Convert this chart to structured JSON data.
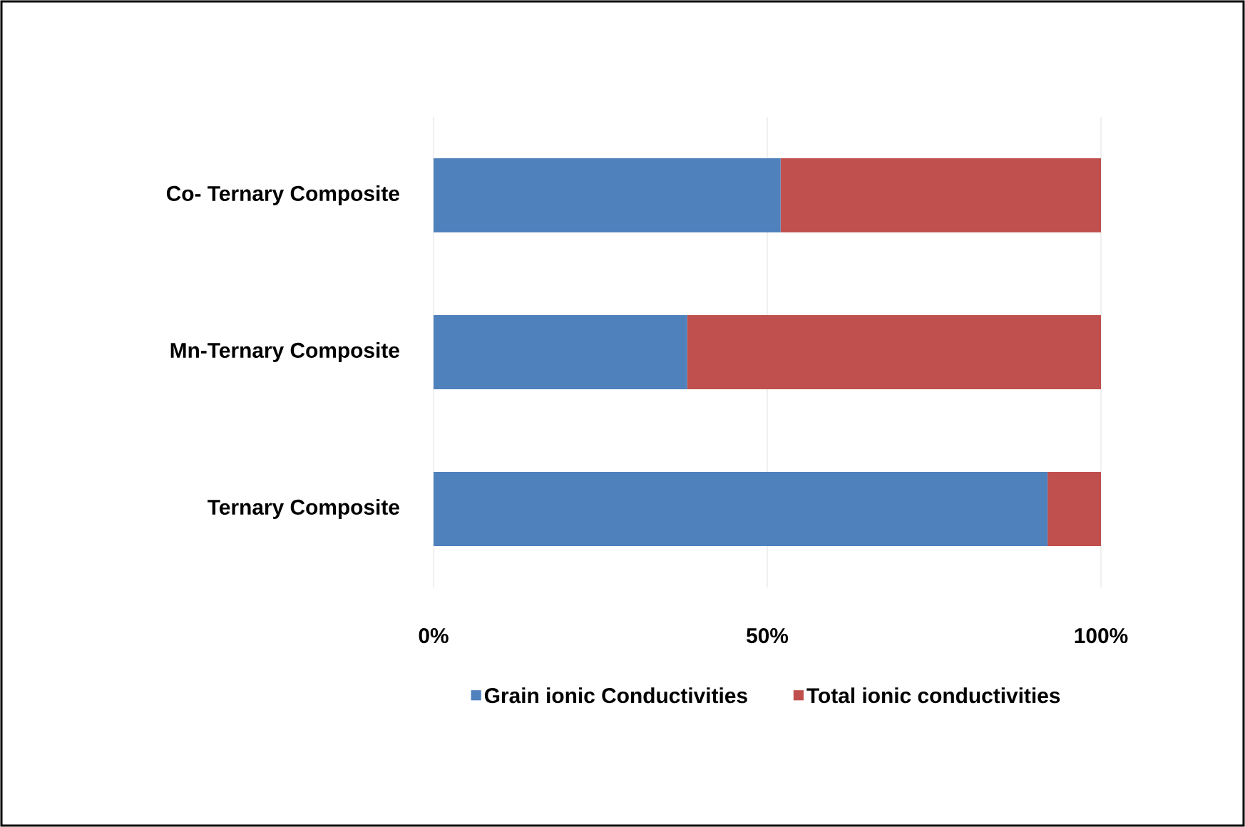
{
  "chart_data": {
    "type": "bar",
    "orientation": "horizontal",
    "stacked": true,
    "categories": [
      "Co- Ternary Composite",
      "Mn-Ternary Composite",
      "Ternary Composite"
    ],
    "series": [
      {
        "name": "Grain ionic Conductivities",
        "color": "#4f81bd",
        "values": [
          52,
          38,
          92
        ]
      },
      {
        "name": "Total ionic conductivities",
        "color": "#c0504d",
        "values": [
          48,
          62,
          8
        ]
      }
    ],
    "xlim": [
      0,
      100
    ],
    "xticks": [
      {
        "value": 0,
        "label": "0%"
      },
      {
        "value": 50,
        "label": "50%"
      },
      {
        "value": 100,
        "label": "100%"
      }
    ],
    "grid": "x",
    "legend": "bottom"
  }
}
